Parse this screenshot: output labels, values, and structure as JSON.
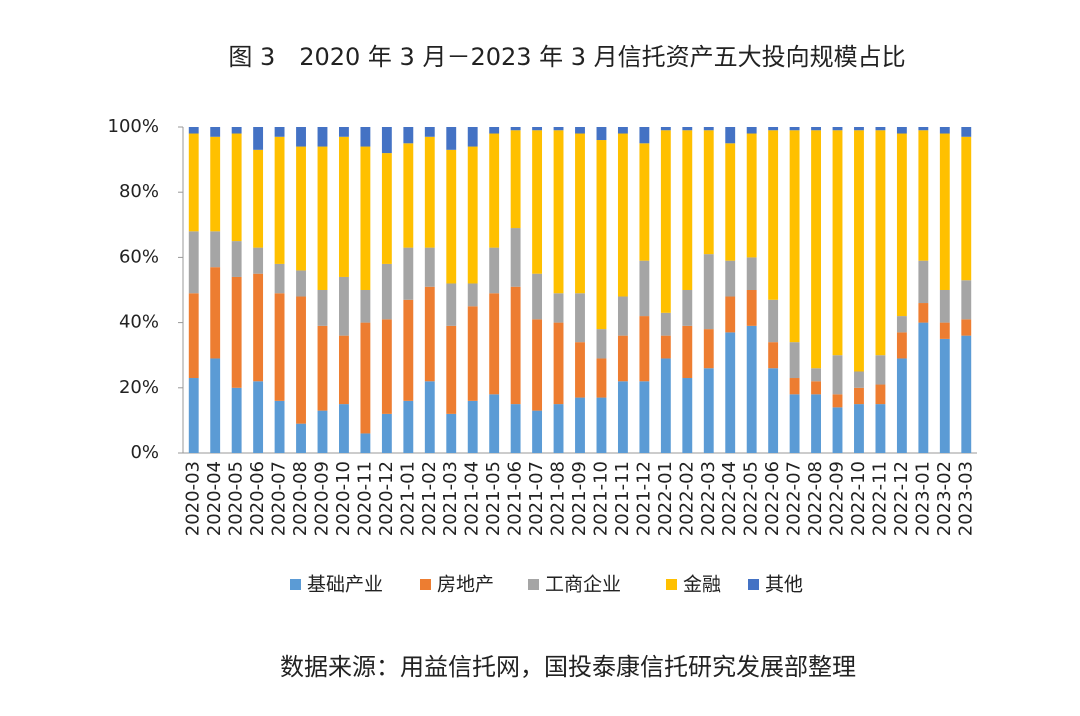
{
  "chart_data": {
    "type": "stacked_bar",
    "title": "图 3　2020 年 3 月－2023 年 3 月信托资产五大投向规模占比",
    "source": "数据来源：用益信托网，国投泰康信托研究发展部整理",
    "categories": [
      "2020-03",
      "2020-04",
      "2020-05",
      "2020-06",
      "2020-07",
      "2020-08",
      "2020-09",
      "2020-10",
      "2020-11",
      "2020-12",
      "2021-01",
      "2021-02",
      "2021-03",
      "2021-04",
      "2021-05",
      "2021-06",
      "2021-07",
      "2021-08",
      "2021-09",
      "2021-10",
      "2021-11",
      "2021-12",
      "2022-01",
      "2022-02",
      "2022-03",
      "2022-04",
      "2022-05",
      "2022-06",
      "2022-07",
      "2022-08",
      "2022-09",
      "2022-10",
      "2022-11",
      "2022-12",
      "2023-01",
      "2023-02",
      "2023-03"
    ],
    "series": [
      {
        "name": "基础产业",
        "color": "#5b9bd5",
        "values": [
          23,
          29,
          20,
          22,
          16,
          9,
          13,
          15,
          6,
          12,
          16,
          22,
          12,
          16,
          18,
          15,
          13,
          15,
          17,
          17,
          22,
          22,
          29,
          23,
          26,
          37,
          39,
          26,
          18,
          18,
          14,
          15,
          15,
          29,
          40,
          35,
          36
        ]
      },
      {
        "name": "房地产",
        "color": "#ed7d31",
        "values": [
          26,
          28,
          34,
          33,
          33,
          39,
          26,
          21,
          34,
          29,
          31,
          29,
          27,
          29,
          31,
          36,
          28,
          25,
          17,
          12,
          14,
          20,
          7,
          16,
          12,
          11,
          11,
          8,
          5,
          4,
          4,
          5,
          6,
          8,
          6,
          5,
          5
        ]
      },
      {
        "name": "工商企业",
        "color": "#a5a5a5",
        "values": [
          19,
          11,
          11,
          8,
          9,
          8,
          11,
          18,
          10,
          17,
          16,
          12,
          13,
          7,
          14,
          18,
          14,
          9,
          15,
          9,
          12,
          17,
          7,
          11,
          23,
          11,
          10,
          13,
          11,
          4,
          12,
          5,
          9,
          5,
          13,
          10,
          12
        ]
      },
      {
        "name": "金融",
        "color": "#ffc000",
        "values": [
          30,
          29,
          33,
          30,
          39,
          38,
          44,
          43,
          44,
          34,
          32,
          34,
          41,
          42,
          35,
          30,
          44,
          50,
          49,
          58,
          50,
          36,
          56,
          49,
          38,
          36,
          38,
          52,
          65,
          73,
          69,
          74,
          69,
          56,
          40,
          48,
          44
        ]
      },
      {
        "name": "其他",
        "color": "#4472c4",
        "values": [
          2,
          3,
          2,
          7,
          3,
          6,
          6,
          3,
          6,
          8,
          5,
          3,
          7,
          6,
          2,
          1,
          1,
          1,
          2,
          4,
          2,
          5,
          1,
          1,
          1,
          5,
          2,
          1,
          1,
          1,
          1,
          1,
          1,
          2,
          1,
          2,
          3
        ]
      }
    ],
    "ylim": [
      0,
      100
    ],
    "yticks": [
      {
        "value": 0,
        "label": "0%"
      },
      {
        "value": 20,
        "label": "20%"
      },
      {
        "value": 40,
        "label": "40%"
      },
      {
        "value": 60,
        "label": "60%"
      },
      {
        "value": 80,
        "label": "80%"
      },
      {
        "value": 100,
        "label": "100%"
      }
    ],
    "grid": false
  }
}
